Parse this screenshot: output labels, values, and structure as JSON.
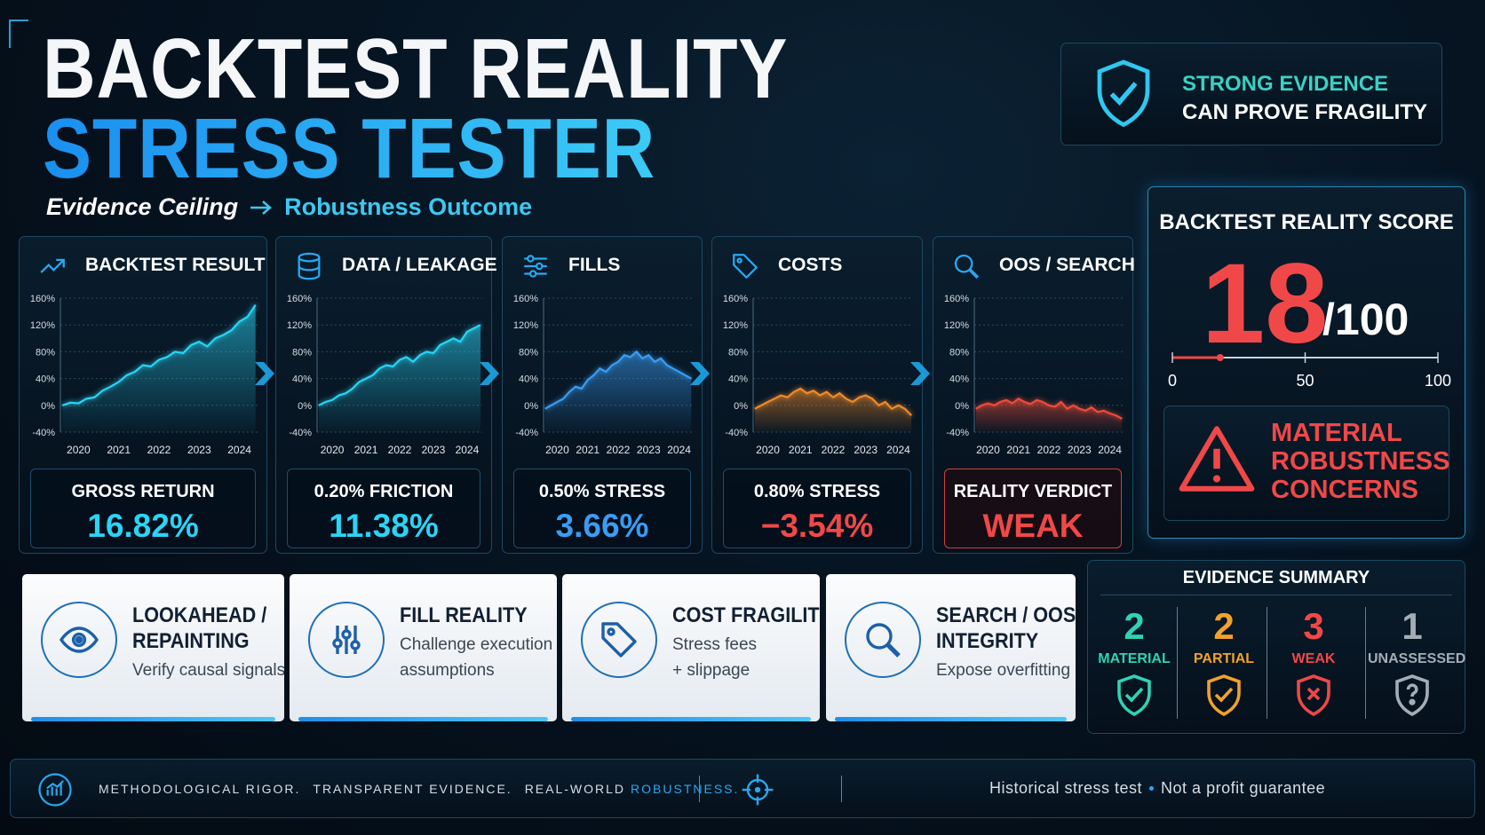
{
  "header": {
    "title_line1": "BACKTEST REALITY",
    "title_line2": "STRESS TESTER",
    "subtitle_left": "Evidence Ceiling",
    "subtitle_right": "Robustness Outcome"
  },
  "badge": {
    "lines": [
      "STRONG EVIDENCE",
      "CAN PROVE FRAGILITY"
    ]
  },
  "panels": [
    {
      "title": "BACKTEST RESULT",
      "icon": "trend",
      "metric_label": "GROSS RETURN",
      "metric_value": "16.82%",
      "metric_color": "#2ad4f5",
      "chart": {
        "type": "line",
        "color": "#2ad4f5",
        "x": [
          2019.6,
          2019.8,
          2020,
          2020.2,
          2020.4,
          2020.6,
          2020.8,
          2021,
          2021.2,
          2021.4,
          2021.6,
          2021.8,
          2022,
          2022.2,
          2022.4,
          2022.6,
          2022.8,
          2023,
          2023.2,
          2023.4,
          2023.6,
          2023.8,
          2024,
          2024.2,
          2024.4
        ],
        "values": [
          0,
          4,
          3,
          10,
          12,
          22,
          28,
          35,
          45,
          50,
          60,
          58,
          68,
          72,
          80,
          78,
          90,
          95,
          88,
          100,
          105,
          112,
          125,
          132,
          150
        ],
        "xlim": [
          2019.55,
          2024.45
        ],
        "ylim": [
          -40,
          160
        ],
        "xticks": [
          2020,
          2021,
          2022,
          2023,
          2024
        ],
        "yticks": [
          {
            "value": 160,
            "label": "160%"
          },
          {
            "value": 120,
            "label": "120%"
          },
          {
            "value": 80,
            "label": "80%"
          },
          {
            "value": 40,
            "label": "40%"
          },
          {
            "value": 0,
            "label": "0%"
          },
          {
            "value": -40,
            "label": "-40%"
          }
        ]
      }
    },
    {
      "title": "DATA / LEAKAGE",
      "icon": "database",
      "metric_label": "0.20% FRICTION",
      "metric_value": "11.38%",
      "metric_color": "#2ad4f5",
      "chart": {
        "type": "line",
        "color": "#2ad4f5",
        "x": [
          2019.6,
          2019.8,
          2020,
          2020.2,
          2020.4,
          2020.6,
          2020.8,
          2021,
          2021.2,
          2021.4,
          2021.6,
          2021.8,
          2022,
          2022.2,
          2022.4,
          2022.6,
          2022.8,
          2023,
          2023.2,
          2023.4,
          2023.6,
          2023.8,
          2024,
          2024.2,
          2024.4
        ],
        "values": [
          0,
          5,
          8,
          15,
          18,
          25,
          35,
          40,
          45,
          55,
          60,
          58,
          68,
          72,
          65,
          75,
          80,
          78,
          90,
          95,
          100,
          95,
          110,
          115,
          120
        ],
        "xlim": [
          2019.55,
          2024.45
        ],
        "ylim": [
          -40,
          160
        ],
        "xticks": [
          2020,
          2021,
          2022,
          2023,
          2024
        ],
        "yticks": [
          {
            "value": 160,
            "label": "160%"
          },
          {
            "value": 120,
            "label": "120%"
          },
          {
            "value": 80,
            "label": "80%"
          },
          {
            "value": 40,
            "label": "40%"
          },
          {
            "value": 0,
            "label": "0%"
          },
          {
            "value": -40,
            "label": "-40%"
          }
        ]
      }
    },
    {
      "title": "FILLS",
      "icon": "sliders",
      "metric_label": "0.50% STRESS",
      "metric_value": "3.66%",
      "metric_color": "#3a9cf2",
      "chart": {
        "type": "line",
        "color": "#3a9cf2",
        "x": [
          2019.6,
          2019.8,
          2020,
          2020.2,
          2020.4,
          2020.6,
          2020.8,
          2021,
          2021.2,
          2021.4,
          2021.6,
          2021.8,
          2022,
          2022.2,
          2022.4,
          2022.6,
          2022.8,
          2023,
          2023.2,
          2023.4,
          2023.6,
          2023.8,
          2024,
          2024.2,
          2024.4
        ],
        "values": [
          -5,
          0,
          5,
          10,
          20,
          28,
          25,
          38,
          45,
          55,
          50,
          60,
          65,
          75,
          72,
          80,
          70,
          75,
          65,
          70,
          60,
          55,
          50,
          45,
          40
        ],
        "xlim": [
          2019.55,
          2024.45
        ],
        "ylim": [
          -40,
          160
        ],
        "xticks": [
          2020,
          2021,
          2022,
          2023,
          2024
        ],
        "yticks": [
          {
            "value": 160,
            "label": "160%"
          },
          {
            "value": 120,
            "label": "120%"
          },
          {
            "value": 80,
            "label": "80%"
          },
          {
            "value": 40,
            "label": "40%"
          },
          {
            "value": 0,
            "label": "0%"
          },
          {
            "value": -40,
            "label": "-40%"
          }
        ]
      }
    },
    {
      "title": "COSTS",
      "icon": "tag",
      "metric_label": "0.80% STRESS",
      "metric_value": "−3.54%",
      "metric_color": "#f04848",
      "chart": {
        "type": "line",
        "color": "#f08a2a",
        "x": [
          2019.6,
          2019.8,
          2020,
          2020.2,
          2020.4,
          2020.6,
          2020.8,
          2021,
          2021.2,
          2021.4,
          2021.6,
          2021.8,
          2022,
          2022.2,
          2022.4,
          2022.6,
          2022.8,
          2023,
          2023.2,
          2023.4,
          2023.6,
          2023.8,
          2024,
          2024.2,
          2024.4
        ],
        "values": [
          -5,
          0,
          5,
          10,
          15,
          12,
          20,
          25,
          18,
          22,
          15,
          20,
          12,
          18,
          10,
          5,
          12,
          15,
          10,
          0,
          5,
          -5,
          0,
          -5,
          -15
        ],
        "xlim": [
          2019.55,
          2024.45
        ],
        "ylim": [
          -40,
          160
        ],
        "xticks": [
          2020,
          2021,
          2022,
          2023,
          2024
        ],
        "yticks": [
          {
            "value": 160,
            "label": "160%"
          },
          {
            "value": 120,
            "label": "120%"
          },
          {
            "value": 80,
            "label": "80%"
          },
          {
            "value": 40,
            "label": "40%"
          },
          {
            "value": 0,
            "label": "0%"
          },
          {
            "value": -40,
            "label": "-40%"
          }
        ]
      }
    },
    {
      "title": "OOS / SEARCH",
      "icon": "search",
      "metric_label": "REALITY VERDICT",
      "metric_value": "WEAK",
      "metric_color": "#f04848",
      "alert": true,
      "chart": {
        "type": "line",
        "color": "#ee4b3a",
        "x": [
          2019.6,
          2019.8,
          2020,
          2020.2,
          2020.4,
          2020.6,
          2020.8,
          2021,
          2021.2,
          2021.4,
          2021.6,
          2021.8,
          2022,
          2022.2,
          2022.4,
          2022.6,
          2022.8,
          2023,
          2023.2,
          2023.4,
          2023.6,
          2023.8,
          2024,
          2024.2,
          2024.4
        ],
        "values": [
          -5,
          0,
          3,
          0,
          5,
          8,
          3,
          10,
          5,
          2,
          8,
          5,
          0,
          -2,
          5,
          -5,
          0,
          -5,
          -8,
          -3,
          -10,
          -8,
          -12,
          -15,
          -20
        ],
        "xlim": [
          2019.55,
          2024.45
        ],
        "ylim": [
          -40,
          160
        ],
        "xticks": [
          2020,
          2021,
          2022,
          2023,
          2024
        ],
        "yticks": [
          {
            "value": 160,
            "label": "160%"
          },
          {
            "value": 120,
            "label": "120%"
          },
          {
            "value": 80,
            "label": "80%"
          },
          {
            "value": 40,
            "label": "40%"
          },
          {
            "value": 0,
            "label": "0%"
          },
          {
            "value": -40,
            "label": "-40%"
          }
        ]
      }
    }
  ],
  "score": {
    "title": "BACKTEST REALITY SCORE",
    "value": 18,
    "max_label": "/100",
    "scale_lim": [
      0,
      100
    ],
    "scale_ticks": [
      0,
      50,
      100
    ],
    "alert_lines": [
      "MATERIAL",
      "ROBUSTNESS",
      "CONCERNS"
    ]
  },
  "cards": [
    {
      "icon": "eye",
      "title_lines": [
        "LOOKAHEAD /",
        "REPAINTING"
      ],
      "desc_lines": [
        "Verify causal signals"
      ]
    },
    {
      "icon": "mixer",
      "title_lines": [
        "FILL REALITY"
      ],
      "desc_lines": [
        "Challenge execution",
        "assumptions"
      ]
    },
    {
      "icon": "tag",
      "title_lines": [
        "COST FRAGILITY"
      ],
      "desc_lines": [
        "Stress fees",
        "+ slippage"
      ]
    },
    {
      "icon": "search",
      "title_lines": [
        "SEARCH / OOS",
        "INTEGRITY"
      ],
      "desc_lines": [
        "Expose overfitting risk"
      ]
    }
  ],
  "summary": {
    "title": "EVIDENCE SUMMARY",
    "items": [
      {
        "count": 2,
        "label": "MATERIAL",
        "color": "#2fd3b5",
        "icon": "check"
      },
      {
        "count": 2,
        "label": "PARTIAL",
        "color": "#f2a12c",
        "icon": "check"
      },
      {
        "count": 3,
        "label": "WEAK",
        "color": "#f04848",
        "icon": "cross"
      },
      {
        "count": 1,
        "label": "UNASSESSED",
        "color": "#a4adb6",
        "icon": "question"
      }
    ]
  },
  "footer": {
    "left_parts": [
      "METHODOLOGICAL RIGOR.",
      "TRANSPARENT EVIDENCE.",
      "REAL-WORLD"
    ],
    "highlight": "ROBUSTNESS.",
    "right_parts": [
      "Historical stress test",
      "Not a profit guarantee"
    ]
  }
}
